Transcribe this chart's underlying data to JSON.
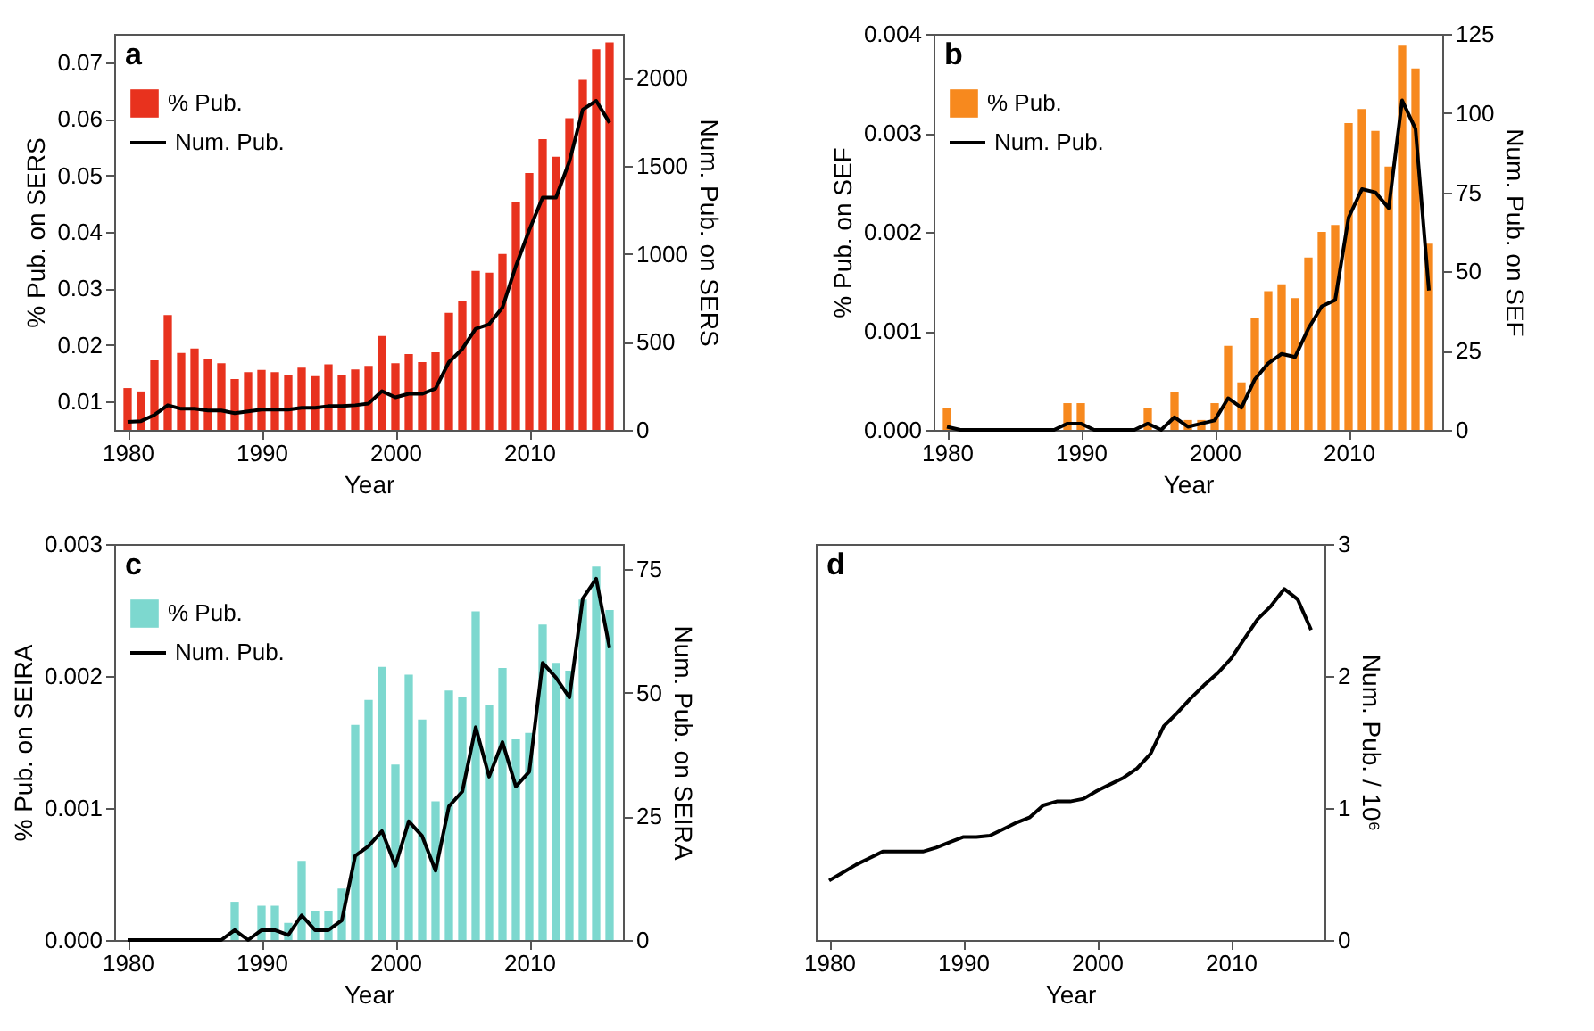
{
  "chart_data": [
    {
      "type": "bar",
      "x": [
        1980,
        1981,
        1982,
        1983,
        1984,
        1985,
        1986,
        1987,
        1988,
        1989,
        1990,
        1991,
        1992,
        1993,
        1994,
        1995,
        1996,
        1997,
        1998,
        1999,
        2000,
        2001,
        2002,
        2003,
        2004,
        2005,
        2006,
        2007,
        2008,
        2009,
        2010,
        2011,
        2012,
        2013,
        2014,
        2015,
        2016
      ],
      "series": [
        {
          "name": "% Pub.",
          "color": "#e8321e",
          "values": [
            0.0124,
            0.0118,
            0.0173,
            0.0253,
            0.0186,
            0.0194,
            0.0175,
            0.0168,
            0.014,
            0.0152,
            0.0156,
            0.0152,
            0.0147,
            0.016,
            0.0145,
            0.0166,
            0.0147,
            0.0157,
            0.0163,
            0.0216,
            0.0168,
            0.0184,
            0.017,
            0.0187,
            0.0257,
            0.0278,
            0.0331,
            0.0328,
            0.0361,
            0.0452,
            0.0504,
            0.0564,
            0.0533,
            0.0601,
            0.0669,
            0.0723,
            0.0735
          ]
        },
        {
          "name": "Num. Pub.",
          "type": "line",
          "axis": "y2",
          "color": "#000000",
          "values": [
            45,
            50,
            85,
            140,
            120,
            120,
            110,
            110,
            95,
            105,
            115,
            115,
            115,
            125,
            125,
            135,
            135,
            140,
            150,
            220,
            185,
            205,
            205,
            235,
            385,
            460,
            575,
            600,
            695,
            930,
            1135,
            1320,
            1320,
            1525,
            1820,
            1870,
            1745
          ]
        }
      ],
      "xlim": [
        1979,
        2017
      ],
      "xticks": [
        1980,
        1990,
        2000,
        2010
      ],
      "ylim": [
        0.005,
        0.075
      ],
      "yticks": [
        0.01,
        0.02,
        0.03,
        0.04,
        0.05,
        0.06,
        0.07
      ],
      "y2lim": [
        0,
        2250
      ],
      "y2ticks": [
        0,
        500,
        1000,
        1500,
        2000
      ],
      "xlabel": "Year",
      "ylabel": "% Pub. on SERS",
      "y2label": "Num. Pub. on SERS",
      "legend": "top left",
      "annotations": [
        "a"
      ]
    },
    {
      "type": "bar",
      "x": [
        1980,
        1981,
        1982,
        1983,
        1984,
        1985,
        1986,
        1987,
        1988,
        1989,
        1990,
        1991,
        1992,
        1993,
        1994,
        1995,
        1996,
        1997,
        1998,
        1999,
        2000,
        2001,
        2002,
        2003,
        2004,
        2005,
        2006,
        2007,
        2008,
        2009,
        2010,
        2011,
        2012,
        2013,
        2014,
        2015,
        2016
      ],
      "series": [
        {
          "name": "% Pub.",
          "color": "#f7891e",
          "values": [
            0.00022,
            0,
            0,
            0,
            0,
            0,
            0,
            0,
            0,
            0.00027,
            0.00027,
            0,
            0,
            0,
            0,
            0.00022,
            0,
            0.00038,
            0.0001,
            0.0001,
            0.00027,
            0.00085,
            0.00048,
            0.00113,
            0.0014,
            0.00147,
            0.00133,
            0.00174,
            0.002,
            0.00207,
            0.0031,
            0.00324,
            0.00302,
            0.00266,
            0.00388,
            0.00365,
            0.00188
          ]
        },
        {
          "name": "Num. Pub.",
          "type": "line",
          "axis": "y2",
          "color": "#000000",
          "values": [
            1,
            0,
            0,
            0,
            0,
            0,
            0,
            0,
            0,
            2,
            2,
            0,
            0,
            0,
            0,
            2,
            0,
            4,
            1,
            2,
            3,
            10,
            7,
            16,
            21,
            24,
            23,
            32,
            39,
            41,
            67,
            76,
            75,
            70,
            104,
            95,
            44
          ]
        }
      ],
      "xlim": [
        1979,
        2017
      ],
      "xticks": [
        1980,
        1990,
        2000,
        2010
      ],
      "ylim": [
        0,
        0.004
      ],
      "yticks": [
        {
          "value": 0,
          "label": "0.000"
        },
        0.001,
        0.002,
        0.003,
        0.004
      ],
      "y2lim": [
        0,
        125
      ],
      "y2ticks": [
        0,
        25,
        50,
        75,
        100,
        125
      ],
      "xlabel": "Year",
      "ylabel": "% Pub. on SEF",
      "y2label": "Num. Pub. on SEF",
      "legend": "top left",
      "annotations": [
        "b"
      ]
    },
    {
      "type": "bar",
      "x": [
        1980,
        1981,
        1982,
        1983,
        1984,
        1985,
        1986,
        1987,
        1988,
        1989,
        1990,
        1991,
        1992,
        1993,
        1994,
        1995,
        1996,
        1997,
        1998,
        1999,
        2000,
        2001,
        2002,
        2003,
        2004,
        2005,
        2006,
        2007,
        2008,
        2009,
        2010,
        2011,
        2012,
        2013,
        2014,
        2015,
        2016
      ],
      "series": [
        {
          "name": "% Pub.",
          "color": "#7dd8cf",
          "values": [
            0,
            0,
            0,
            0,
            0,
            0,
            0,
            0,
            0.00029,
            0,
            0.00026,
            0.00026,
            0.00013,
            0.0006,
            0.00022,
            0.00022,
            0.00039,
            0.00163,
            0.00182,
            0.00207,
            0.00133,
            0.00201,
            0.00167,
            0.00105,
            0.00189,
            0.00184,
            0.00249,
            0.00178,
            0.00206,
            0.00152,
            0.00157,
            0.00239,
            0.0021,
            0.00204,
            0.00258,
            0.00283,
            0.0025
          ]
        },
        {
          "name": "Num. Pub.",
          "type": "line",
          "axis": "y2",
          "color": "#000000",
          "values": [
            0,
            0,
            0,
            0,
            0,
            0,
            0,
            0,
            2,
            0,
            2,
            2,
            1,
            5,
            2,
            2,
            4,
            17,
            19,
            22,
            15,
            24,
            21,
            14,
            27,
            30,
            43,
            33,
            40,
            31,
            34,
            56,
            53,
            49,
            69,
            73,
            59
          ]
        }
      ],
      "xlim": [
        1979,
        2017
      ],
      "xticks": [
        1980,
        1990,
        2000,
        2010
      ],
      "ylim": [
        0,
        0.003
      ],
      "yticks": [
        {
          "value": 0,
          "label": "0.000"
        },
        0.001,
        0.002,
        0.003
      ],
      "y2lim": [
        0,
        80
      ],
      "y2ticks": [
        0,
        25,
        50,
        75
      ],
      "xlabel": "Year",
      "ylabel": "% Pub. on SEIRA",
      "y2label": "Num. Pub. on SEIRA",
      "legend": "top left",
      "annotations": [
        "c"
      ]
    },
    {
      "type": "line",
      "x": [
        1980,
        1981,
        1982,
        1983,
        1984,
        1985,
        1986,
        1987,
        1988,
        1989,
        1990,
        1991,
        1992,
        1993,
        1994,
        1995,
        1996,
        1997,
        1998,
        1999,
        2000,
        2001,
        2002,
        2003,
        2004,
        2005,
        2006,
        2007,
        2008,
        2009,
        2010,
        2011,
        2012,
        2013,
        2014,
        2015,
        2016
      ],
      "series": [
        {
          "axis": "y2",
          "color": "#000000",
          "values": [
            0.45,
            0.51,
            0.57,
            0.62,
            0.67,
            0.67,
            0.67,
            0.67,
            0.7,
            0.74,
            0.78,
            0.78,
            0.79,
            0.84,
            0.89,
            0.93,
            1.02,
            1.05,
            1.05,
            1.07,
            1.13,
            1.18,
            1.23,
            1.3,
            1.41,
            1.62,
            1.72,
            1.83,
            1.93,
            2.02,
            2.13,
            2.28,
            2.43,
            2.53,
            2.66,
            2.58,
            2.35
          ]
        }
      ],
      "xlim": [
        1979,
        2017
      ],
      "xticks": [
        1980,
        1990,
        2000,
        2010
      ],
      "y2lim": [
        0,
        3
      ],
      "y2ticks": [
        0,
        1,
        2,
        3
      ],
      "xlabel": "Year",
      "y2label": "Num. Pub.  / 10⁶",
      "annotations": [
        "d"
      ]
    }
  ]
}
